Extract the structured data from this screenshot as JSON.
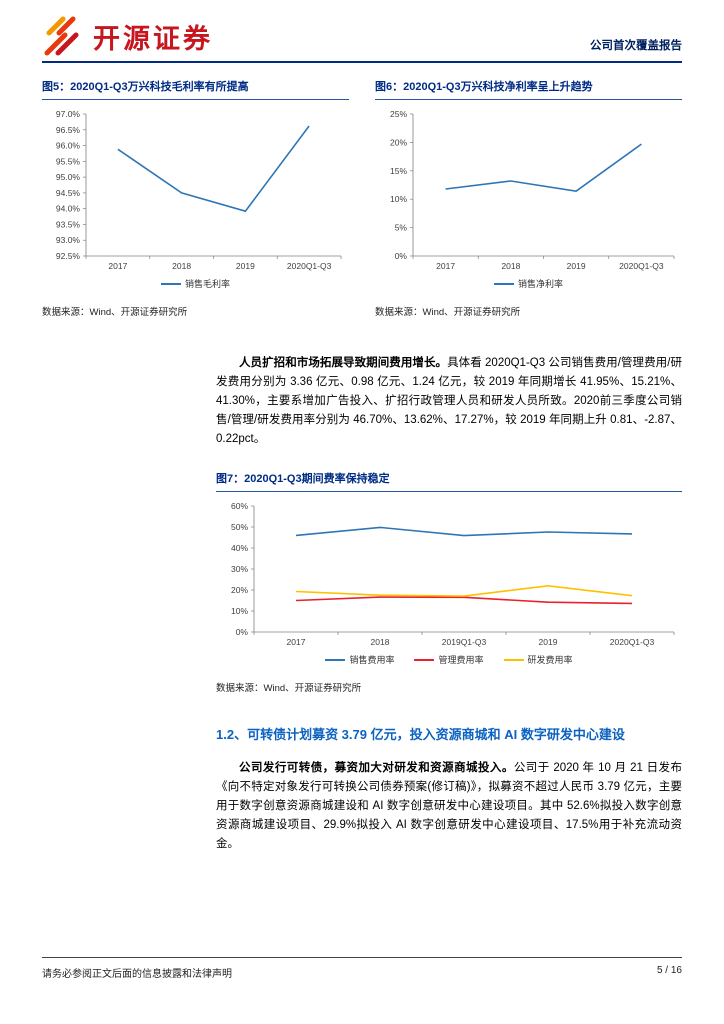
{
  "header": {
    "logo_text": "开源证券",
    "report_type": "公司首次覆盖报告"
  },
  "figures": {
    "fig5": {
      "title": "图5：2020Q1-Q3万兴科技毛利率有所提高",
      "source": "数据来源：Wind、开源证券研究所"
    },
    "fig6": {
      "title": "图6：2020Q1-Q3万兴科技净利率呈上升趋势",
      "source": "数据来源：Wind、开源证券研究所"
    },
    "fig7": {
      "title": "图7：2020Q1-Q3期间费率保持稳定",
      "source": "数据来源：Wind、开源证券研究所"
    }
  },
  "chart_data": [
    {
      "id": "fig5",
      "type": "line",
      "title": "图5：2020Q1-Q3万兴科技毛利率有所提高",
      "categories": [
        "2017",
        "2018",
        "2019",
        "2020Q1-Q3"
      ],
      "series": [
        {
          "name": "销售毛利率",
          "color": "#2e75b6",
          "values": [
            95.88,
            94.5,
            93.92,
            96.62
          ]
        }
      ],
      "ylim": [
        92.5,
        97.0
      ],
      "ytick_step": 0.5,
      "ytick_decimals": 1,
      "grid": false,
      "legend_position": "bottom",
      "margin_left": 44
    },
    {
      "id": "fig6",
      "type": "line",
      "title": "图6：2020Q1-Q3万兴科技净利率呈上升趋势",
      "categories": [
        "2017",
        "2018",
        "2019",
        "2020Q1-Q3"
      ],
      "series": [
        {
          "name": "销售净利率",
          "color": "#2e75b6",
          "values": [
            11.8,
            13.2,
            11.4,
            19.7
          ]
        }
      ],
      "ylim": [
        0,
        25
      ],
      "ytick_step": 5,
      "ytick_decimals": 0,
      "grid": false,
      "legend_position": "bottom",
      "margin_left": 38
    },
    {
      "id": "fig7",
      "type": "line",
      "title": "图7：2020Q1-Q3期间费率保持稳定",
      "categories": [
        "2017",
        "2018",
        "2019Q1-Q3",
        "2019",
        "2020Q1-Q3"
      ],
      "series": [
        {
          "name": "销售费用率",
          "color": "#2e75b6",
          "values": [
            46.0,
            49.8,
            45.9,
            47.6,
            46.7
          ]
        },
        {
          "name": "管理费用率",
          "color": "#e8222d",
          "values": [
            15.0,
            16.6,
            16.5,
            14.2,
            13.6
          ]
        },
        {
          "name": "研发费用率",
          "color": "#ffc000",
          "values": [
            19.3,
            17.5,
            17.1,
            22.0,
            17.3
          ]
        }
      ],
      "ylim": [
        0,
        60
      ],
      "ytick_step": 10,
      "ytick_decimals": 0,
      "grid": false,
      "legend_position": "bottom",
      "margin_left": 38
    }
  ],
  "body": {
    "p1_lead": "人员扩招和市场拓展导致期间费用增长。",
    "p1_text": "具体看 2020Q1-Q3 公司销售费用/管理费用/研发费用分别为 3.36 亿元、0.98 亿元、1.24 亿元，较 2019 年同期增长 41.95%、15.21%、41.30%，主要系增加广告投入、扩招行政管理人员和研发人员所致。2020前三季度公司销售/管理/研发费用率分别为 46.70%、13.62%、17.27%，较 2019 年同期上升 0.81、-2.87、0.22pct。",
    "section_title": "1.2、可转债计划募资 3.79 亿元，投入资源商城和 AI 数字研发中心建设",
    "p2_lead": "公司发行可转债，募资加大对研发和资源商城投入。",
    "p2_text": "公司于 2020 年 10 月 21 日发布《向不特定对象发行可转换公司债券预案(修订稿)》，拟募资不超过人民币 3.79 亿元，主要用于数字创意资源商城建设和 AI 数字创意研发中心建设项目。其中 52.6%拟投入数字创意资源商城建设项目、29.9%拟投入 AI 数字创意研发中心建设项目、17.5%用于补充流动资金。"
  },
  "footer": {
    "disclaimer": "请务必参阅正文后面的信息披露和法律声明",
    "page": "5 / 16"
  }
}
